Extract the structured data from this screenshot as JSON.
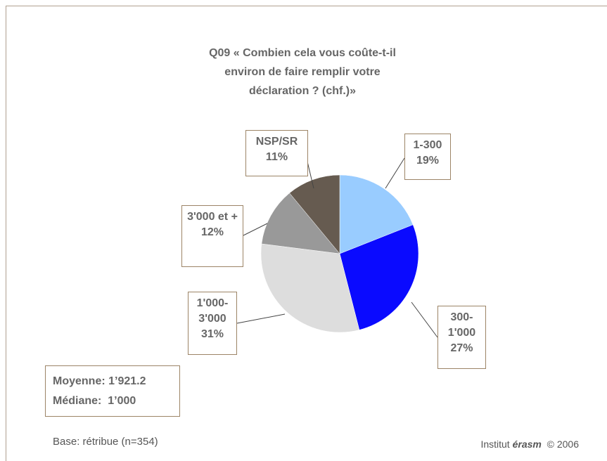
{
  "chart_data": {
    "type": "pie",
    "title": "Q09 « Combien cela vous coûte-t-il\nenviron de faire remplir votre\ndéclaration ? (chf.)»",
    "categories": [
      "1-300",
      "300-1'000",
      "1'000-3'000",
      "3'000 et +",
      "NSP/SR"
    ],
    "values": [
      19,
      27,
      31,
      12,
      11
    ],
    "value_labels": [
      "19%",
      "27%",
      "31%",
      "12%",
      "11%"
    ],
    "colors": [
      "#99ccff",
      "#0a0aff",
      "#dddddd",
      "#999999",
      "#665b50"
    ],
    "stats": [
      "Moyenne: 1’921.2",
      "Médiane:  1’000"
    ],
    "note": "Base: rétribue (n=354)",
    "footer": {
      "prefix": "Institut",
      "brand": "érasm",
      "suffix": "© 2006"
    }
  }
}
